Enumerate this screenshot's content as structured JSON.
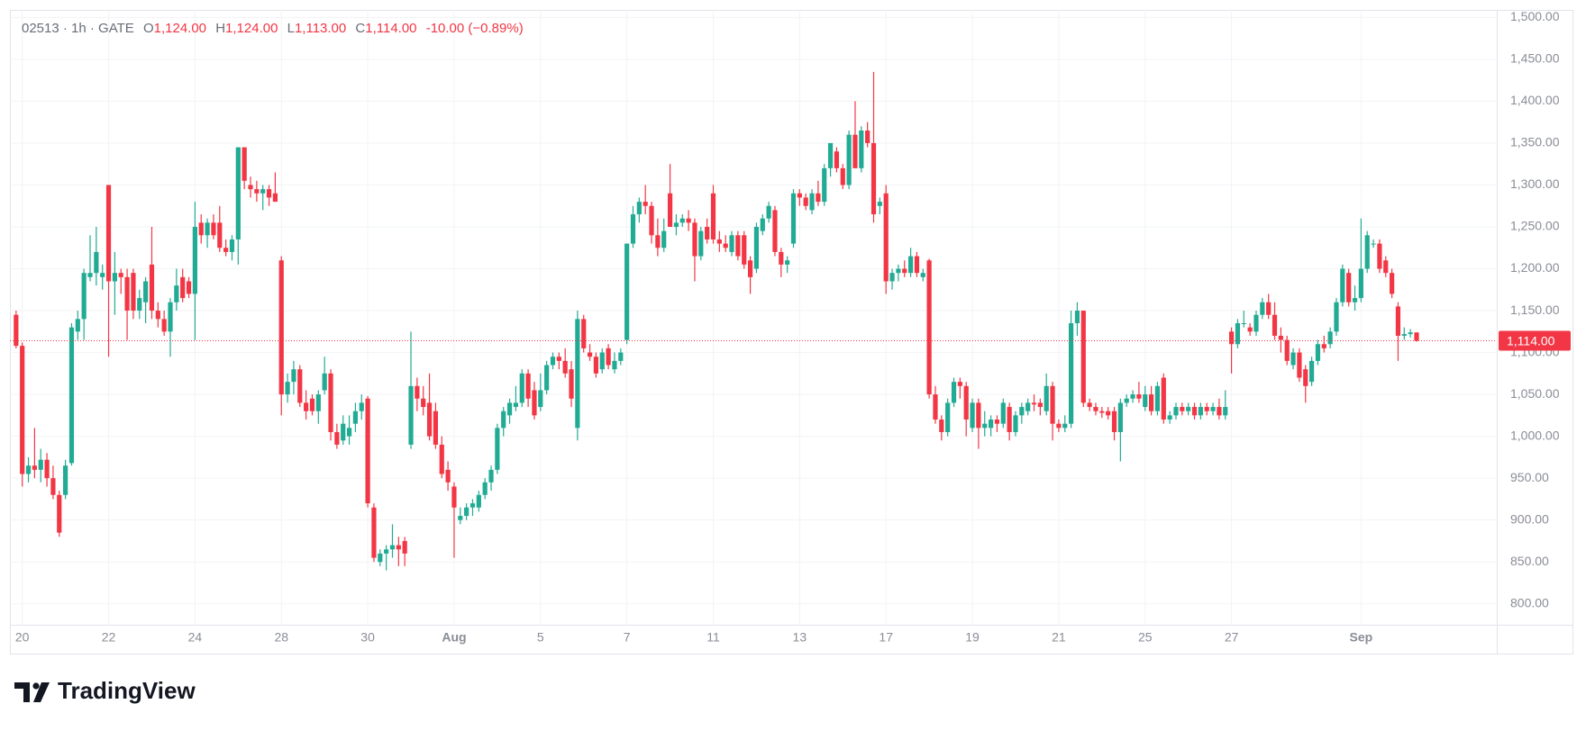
{
  "chart_data": {
    "type": "candlestick",
    "legend": {
      "symbol": "02513 · 1h · GATE",
      "items": [
        {
          "label": "O",
          "value": "1,124.00"
        },
        {
          "label": "H",
          "value": "1,124.00"
        },
        {
          "label": "L",
          "value": "1,113.00"
        },
        {
          "label": "C",
          "value": "1,114.00"
        }
      ],
      "change": "-10.00 (−0.89%)"
    },
    "up_color": "#22ab94",
    "down_color": "#f23645",
    "grid": true,
    "xlim": [
      -1,
      240
    ],
    "xticks": [
      {
        "value": 1,
        "label": "20"
      },
      {
        "value": 15,
        "label": "22"
      },
      {
        "value": 29,
        "label": "24"
      },
      {
        "value": 43,
        "label": "28"
      },
      {
        "value": 57,
        "label": "30"
      },
      {
        "value": 71,
        "label": "Aug"
      },
      {
        "value": 85,
        "label": "5"
      },
      {
        "value": 99,
        "label": "7"
      },
      {
        "value": 113,
        "label": "11"
      },
      {
        "value": 127,
        "label": "13"
      },
      {
        "value": 141,
        "label": "17"
      },
      {
        "value": 155,
        "label": "19"
      },
      {
        "value": 169,
        "label": "21"
      },
      {
        "value": 183,
        "label": "25"
      },
      {
        "value": 197,
        "label": "27"
      },
      {
        "value": 218,
        "label": "Sep"
      }
    ],
    "ylim": [
      775,
      1509
    ],
    "yticks": [
      {
        "value": 800,
        "label": "800.00"
      },
      {
        "value": 850,
        "label": "850.00"
      },
      {
        "value": 900,
        "label": "900.00"
      },
      {
        "value": 950,
        "label": "950.00"
      },
      {
        "value": 1000,
        "label": "1,000.00"
      },
      {
        "value": 1050,
        "label": "1,050.00"
      },
      {
        "value": 1100,
        "label": "1,100.00"
      },
      {
        "value": 1150,
        "label": "1,150.00"
      },
      {
        "value": 1200,
        "label": "1,200.00"
      },
      {
        "value": 1250,
        "label": "1,250.00"
      },
      {
        "value": 1300,
        "label": "1,300.00"
      },
      {
        "value": 1350,
        "label": "1,350.00"
      },
      {
        "value": 1400,
        "label": "1,400.00"
      },
      {
        "value": 1450,
        "label": "1,450.00"
      },
      {
        "value": 1500,
        "label": "1,500.00"
      }
    ],
    "last_price": {
      "value": 1114,
      "label": "1,114.00"
    },
    "candles": [
      [
        1145,
        1150,
        1105,
        1108
      ],
      [
        1108,
        1112,
        940,
        955
      ],
      [
        955,
        975,
        945,
        965
      ],
      [
        965,
        1010,
        950,
        960
      ],
      [
        960,
        985,
        945,
        972
      ],
      [
        972,
        980,
        940,
        950
      ],
      [
        950,
        965,
        925,
        930
      ],
      [
        930,
        935,
        880,
        885
      ],
      [
        930,
        972,
        925,
        965
      ],
      [
        968,
        1135,
        965,
        1130
      ],
      [
        1125,
        1150,
        1115,
        1140
      ],
      [
        1140,
        1200,
        1115,
        1195
      ],
      [
        1190,
        1240,
        1185,
        1195
      ],
      [
        1195,
        1250,
        1180,
        1220
      ],
      [
        1190,
        1205,
        1175,
        1195
      ],
      [
        1300,
        1300,
        1095,
        1185
      ],
      [
        1185,
        1220,
        1145,
        1195
      ],
      [
        1195,
        1200,
        1170,
        1190
      ],
      [
        1190,
        1200,
        1115,
        1150
      ],
      [
        1195,
        1200,
        1140,
        1150
      ],
      [
        1150,
        1175,
        1140,
        1165
      ],
      [
        1160,
        1190,
        1135,
        1185
      ],
      [
        1205,
        1250,
        1140,
        1150
      ],
      [
        1150,
        1160,
        1130,
        1140
      ],
      [
        1140,
        1150,
        1120,
        1125
      ],
      [
        1125,
        1165,
        1095,
        1160
      ],
      [
        1160,
        1200,
        1150,
        1180
      ],
      [
        1190,
        1200,
        1160,
        1165
      ],
      [
        1185,
        1190,
        1165,
        1170
      ],
      [
        1170,
        1280,
        1115,
        1250
      ],
      [
        1255,
        1265,
        1230,
        1240
      ],
      [
        1240,
        1260,
        1225,
        1255
      ],
      [
        1255,
        1265,
        1235,
        1240
      ],
      [
        1255,
        1275,
        1220,
        1225
      ],
      [
        1225,
        1235,
        1215,
        1220
      ],
      [
        1220,
        1240,
        1210,
        1235
      ],
      [
        1235,
        1345,
        1205,
        1345
      ],
      [
        1345,
        1345,
        1295,
        1305
      ],
      [
        1300,
        1310,
        1285,
        1295
      ],
      [
        1295,
        1305,
        1280,
        1290
      ],
      [
        1290,
        1300,
        1270,
        1295
      ],
      [
        1295,
        1300,
        1275,
        1285
      ],
      [
        1290,
        1315,
        1280,
        1280
      ],
      [
        1210,
        1215,
        1025,
        1050
      ],
      [
        1050,
        1075,
        1040,
        1065
      ],
      [
        1065,
        1090,
        1050,
        1080
      ],
      [
        1080,
        1085,
        1035,
        1040
      ],
      [
        1040,
        1055,
        1020,
        1030
      ],
      [
        1045,
        1050,
        1025,
        1030
      ],
      [
        1030,
        1055,
        1015,
        1050
      ],
      [
        1055,
        1095,
        1050,
        1075
      ],
      [
        1075,
        1080,
        995,
        1005
      ],
      [
        1005,
        1015,
        985,
        990
      ],
      [
        995,
        1025,
        990,
        1015
      ],
      [
        1000,
        1025,
        990,
        1010
      ],
      [
        1015,
        1040,
        1005,
        1030
      ],
      [
        1030,
        1050,
        1020,
        1040
      ],
      [
        1045,
        1048,
        915,
        920
      ],
      [
        915,
        920,
        850,
        855
      ],
      [
        850,
        865,
        845,
        860
      ],
      [
        860,
        870,
        840,
        865
      ],
      [
        865,
        895,
        855,
        870
      ],
      [
        870,
        880,
        845,
        865
      ],
      [
        875,
        880,
        845,
        860
      ],
      [
        990,
        1125,
        985,
        1060
      ],
      [
        1060,
        1070,
        1030,
        1045
      ],
      [
        1045,
        1060,
        1025,
        1035
      ],
      [
        1040,
        1075,
        995,
        1000
      ],
      [
        1030,
        1040,
        985,
        990
      ],
      [
        990,
        1000,
        950,
        955
      ],
      [
        960,
        970,
        935,
        945
      ],
      [
        940,
        945,
        855,
        915
      ],
      [
        900,
        915,
        895,
        905
      ],
      [
        905,
        920,
        900,
        915
      ],
      [
        915,
        925,
        905,
        920
      ],
      [
        915,
        935,
        910,
        930
      ],
      [
        930,
        950,
        925,
        945
      ],
      [
        945,
        965,
        935,
        960
      ],
      [
        960,
        1015,
        955,
        1010
      ],
      [
        1010,
        1035,
        1000,
        1030
      ],
      [
        1025,
        1045,
        1015,
        1040
      ],
      [
        1035,
        1060,
        1030,
        1040
      ],
      [
        1040,
        1080,
        1035,
        1075
      ],
      [
        1075,
        1080,
        1035,
        1045
      ],
      [
        1055,
        1065,
        1020,
        1025
      ],
      [
        1035,
        1075,
        1030,
        1055
      ],
      [
        1055,
        1090,
        1050,
        1085
      ],
      [
        1085,
        1100,
        1080,
        1095
      ],
      [
        1095,
        1100,
        1080,
        1090
      ],
      [
        1090,
        1105,
        1070,
        1075
      ],
      [
        1080,
        1090,
        1035,
        1045
      ],
      [
        1010,
        1150,
        995,
        1140
      ],
      [
        1140,
        1145,
        1100,
        1105
      ],
      [
        1100,
        1110,
        1090,
        1095
      ],
      [
        1095,
        1100,
        1070,
        1075
      ],
      [
        1080,
        1105,
        1075,
        1100
      ],
      [
        1105,
        1110,
        1080,
        1085
      ],
      [
        1080,
        1100,
        1075,
        1090
      ],
      [
        1090,
        1105,
        1085,
        1100
      ],
      [
        1115,
        1230,
        1110,
        1230
      ],
      [
        1230,
        1275,
        1225,
        1265
      ],
      [
        1265,
        1285,
        1255,
        1280
      ],
      [
        1280,
        1300,
        1265,
        1275
      ],
      [
        1275,
        1280,
        1230,
        1240
      ],
      [
        1240,
        1260,
        1215,
        1225
      ],
      [
        1225,
        1260,
        1220,
        1245
      ],
      [
        1290,
        1325,
        1250,
        1250
      ],
      [
        1250,
        1265,
        1240,
        1255
      ],
      [
        1255,
        1265,
        1250,
        1260
      ],
      [
        1260,
        1270,
        1245,
        1255
      ],
      [
        1255,
        1260,
        1185,
        1215
      ],
      [
        1215,
        1250,
        1210,
        1245
      ],
      [
        1250,
        1260,
        1230,
        1235
      ],
      [
        1290,
        1300,
        1230,
        1235
      ],
      [
        1235,
        1245,
        1220,
        1230
      ],
      [
        1230,
        1240,
        1220,
        1225
      ],
      [
        1220,
        1245,
        1215,
        1240
      ],
      [
        1240,
        1245,
        1210,
        1215
      ],
      [
        1240,
        1245,
        1200,
        1205
      ],
      [
        1210,
        1215,
        1170,
        1190
      ],
      [
        1200,
        1255,
        1195,
        1250
      ],
      [
        1245,
        1265,
        1240,
        1260
      ],
      [
        1260,
        1280,
        1255,
        1275
      ],
      [
        1270,
        1275,
        1215,
        1220
      ],
      [
        1220,
        1225,
        1190,
        1205
      ],
      [
        1205,
        1215,
        1195,
        1210
      ],
      [
        1230,
        1295,
        1225,
        1290
      ],
      [
        1290,
        1295,
        1275,
        1285
      ],
      [
        1285,
        1290,
        1270,
        1275
      ],
      [
        1270,
        1295,
        1265,
        1290
      ],
      [
        1290,
        1305,
        1275,
        1280
      ],
      [
        1280,
        1325,
        1275,
        1320
      ],
      [
        1320,
        1350,
        1310,
        1350
      ],
      [
        1340,
        1345,
        1315,
        1320
      ],
      [
        1320,
        1325,
        1295,
        1300
      ],
      [
        1300,
        1365,
        1295,
        1360
      ],
      [
        1360,
        1400,
        1320,
        1320
      ],
      [
        1320,
        1370,
        1315,
        1365
      ],
      [
        1365,
        1375,
        1345,
        1350
      ],
      [
        1350,
        1435,
        1255,
        1265
      ],
      [
        1275,
        1285,
        1265,
        1280
      ],
      [
        1290,
        1300,
        1170,
        1185
      ],
      [
        1185,
        1200,
        1175,
        1195
      ],
      [
        1195,
        1205,
        1185,
        1200
      ],
      [
        1200,
        1210,
        1190,
        1195
      ],
      [
        1195,
        1225,
        1190,
        1215
      ],
      [
        1215,
        1220,
        1190,
        1195
      ],
      [
        1190,
        1200,
        1185,
        1195
      ],
      [
        1210,
        1212,
        1045,
        1050
      ],
      [
        1050,
        1060,
        1015,
        1020
      ],
      [
        1020,
        1025,
        995,
        1005
      ],
      [
        1005,
        1045,
        1000,
        1040
      ],
      [
        1040,
        1070,
        1035,
        1065
      ],
      [
        1065,
        1070,
        1045,
        1060
      ],
      [
        1060,
        1065,
        1000,
        1020
      ],
      [
        1010,
        1045,
        1005,
        1040
      ],
      [
        1040,
        1045,
        985,
        1010
      ],
      [
        1010,
        1030,
        1000,
        1015
      ],
      [
        1010,
        1025,
        1000,
        1020
      ],
      [
        1020,
        1025,
        1005,
        1015
      ],
      [
        1015,
        1045,
        1010,
        1040
      ],
      [
        1035,
        1040,
        995,
        1005
      ],
      [
        1005,
        1030,
        1000,
        1025
      ],
      [
        1025,
        1040,
        1015,
        1035
      ],
      [
        1030,
        1045,
        1025,
        1040
      ],
      [
        1040,
        1050,
        1030,
        1038
      ],
      [
        1040,
        1045,
        1025,
        1035
      ],
      [
        1030,
        1075,
        1025,
        1060
      ],
      [
        1060,
        1065,
        995,
        1015
      ],
      [
        1015,
        1020,
        1005,
        1010
      ],
      [
        1010,
        1025,
        1005,
        1015
      ],
      [
        1015,
        1150,
        1010,
        1135
      ],
      [
        1135,
        1160,
        1120,
        1150
      ],
      [
        1150,
        1150,
        1035,
        1040
      ],
      [
        1040,
        1045,
        1030,
        1035
      ],
      [
        1035,
        1040,
        1025,
        1030
      ],
      [
        1030,
        1035,
        1022,
        1028
      ],
      [
        1030,
        1035,
        1020,
        1025
      ],
      [
        1030,
        1035,
        995,
        1005
      ],
      [
        1005,
        1045,
        970,
        1040
      ],
      [
        1040,
        1050,
        1035,
        1045
      ],
      [
        1045,
        1055,
        1040,
        1050
      ],
      [
        1050,
        1065,
        1040,
        1045
      ],
      [
        1035,
        1060,
        1030,
        1050
      ],
      [
        1050,
        1060,
        1025,
        1030
      ],
      [
        1030,
        1065,
        1025,
        1060
      ],
      [
        1070,
        1075,
        1015,
        1020
      ],
      [
        1020,
        1030,
        1015,
        1025
      ],
      [
        1025,
        1040,
        1020,
        1035
      ],
      [
        1035,
        1040,
        1025,
        1030
      ],
      [
        1030,
        1040,
        1025,
        1035
      ],
      [
        1035,
        1040,
        1020,
        1025
      ],
      [
        1025,
        1040,
        1020,
        1035
      ],
      [
        1035,
        1040,
        1025,
        1030
      ],
      [
        1030,
        1040,
        1025,
        1035
      ],
      [
        1035,
        1045,
        1020,
        1025
      ],
      [
        1025,
        1055,
        1020,
        1035
      ],
      [
        1125,
        1130,
        1075,
        1110
      ],
      [
        1110,
        1140,
        1105,
        1135
      ],
      [
        1135,
        1150,
        1130,
        1135
      ],
      [
        1130,
        1135,
        1120,
        1125
      ],
      [
        1125,
        1150,
        1120,
        1145
      ],
      [
        1145,
        1165,
        1140,
        1160
      ],
      [
        1160,
        1170,
        1140,
        1145
      ],
      [
        1145,
        1160,
        1115,
        1120
      ],
      [
        1120,
        1130,
        1100,
        1115
      ],
      [
        1115,
        1120,
        1085,
        1090
      ],
      [
        1085,
        1105,
        1080,
        1100
      ],
      [
        1100,
        1105,
        1065,
        1070
      ],
      [
        1080,
        1085,
        1040,
        1060
      ],
      [
        1065,
        1095,
        1060,
        1090
      ],
      [
        1090,
        1115,
        1085,
        1110
      ],
      [
        1110,
        1120,
        1100,
        1105
      ],
      [
        1110,
        1130,
        1105,
        1125
      ],
      [
        1125,
        1165,
        1120,
        1160
      ],
      [
        1160,
        1205,
        1155,
        1200
      ],
      [
        1195,
        1200,
        1155,
        1160
      ],
      [
        1160,
        1180,
        1150,
        1165
      ],
      [
        1165,
        1260,
        1160,
        1200
      ],
      [
        1200,
        1245,
        1195,
        1240
      ],
      [
        1230,
        1235,
        1225,
        1230
      ],
      [
        1230,
        1235,
        1195,
        1200
      ],
      [
        1210,
        1215,
        1190,
        1195
      ],
      [
        1195,
        1200,
        1165,
        1170
      ],
      [
        1155,
        1160,
        1090,
        1120
      ],
      [
        1120,
        1130,
        1115,
        1122
      ],
      [
        1122,
        1128,
        1118,
        1124
      ],
      [
        1124,
        1124,
        1113,
        1114
      ]
    ],
    "logo": "TradingView"
  }
}
